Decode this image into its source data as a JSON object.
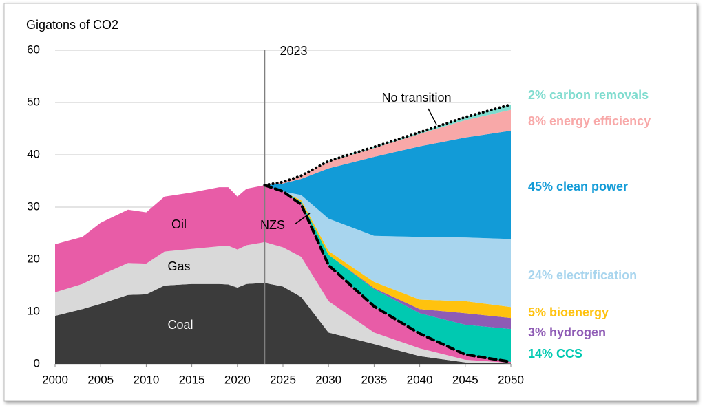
{
  "chart_data": {
    "type": "stacked-area",
    "y_axis_label": "Gigatons of CO2",
    "x": [
      2000,
      2003,
      2005,
      2008,
      2010,
      2012,
      2015,
      2018,
      2019,
      2020,
      2021,
      2023,
      2025,
      2027,
      2030,
      2035,
      2040,
      2045,
      2050
    ],
    "xlim": [
      2000,
      2050
    ],
    "xticks": [
      2000,
      2005,
      2010,
      2015,
      2020,
      2025,
      2030,
      2035,
      2040,
      2045,
      2050
    ],
    "ylim": [
      0,
      60
    ],
    "yticks": [
      0,
      10,
      20,
      30,
      40,
      50,
      60
    ],
    "grid": true,
    "vline": 2023,
    "series": [
      {
        "name": "Coal",
        "color": "#3b3b3b",
        "values": [
          9.2,
          10.5,
          11.5,
          13.2,
          13.3,
          15.0,
          15.3,
          15.3,
          15.2,
          14.6,
          15.3,
          15.5,
          14.8,
          12.8,
          6.0,
          3.8,
          1.5,
          0.3,
          0.1
        ]
      },
      {
        "name": "Gas",
        "color": "#d9d9d9",
        "values": [
          4.5,
          4.8,
          5.5,
          6.1,
          5.9,
          6.5,
          6.7,
          7.2,
          7.4,
          7.3,
          7.4,
          7.8,
          7.5,
          7.7,
          6.0,
          2.2,
          1.5,
          0.5,
          0.1
        ]
      },
      {
        "name": "Oil",
        "color": "#e85ca7",
        "values": [
          9.2,
          9.0,
          10.0,
          10.2,
          9.8,
          10.5,
          10.8,
          11.3,
          11.2,
          10.1,
          10.8,
          10.9,
          10.7,
          10.0,
          6.9,
          5.0,
          2.8,
          1.0,
          0.2
        ]
      },
      {
        "name": "14% CCS",
        "color": "#00c9b1",
        "values": [
          null,
          null,
          null,
          null,
          null,
          null,
          null,
          null,
          null,
          null,
          null,
          0,
          0,
          0.5,
          2.0,
          3.3,
          3.9,
          5.7,
          6.3
        ]
      },
      {
        "name": "3% hydrogen",
        "color": "#8e5bb5",
        "values": [
          null,
          null,
          null,
          null,
          null,
          null,
          null,
          null,
          null,
          null,
          null,
          0,
          0,
          0,
          0,
          0.2,
          0.8,
          2.2,
          2.1
        ]
      },
      {
        "name": "5% bioenergy",
        "color": "#ffc20e",
        "values": [
          null,
          null,
          null,
          null,
          null,
          null,
          null,
          null,
          null,
          null,
          null,
          0,
          0,
          0.3,
          0.7,
          1.2,
          1.8,
          2.3,
          2.1
        ]
      },
      {
        "name": "24% electrification",
        "color": "#a8d5ee",
        "values": [
          null,
          null,
          null,
          null,
          null,
          null,
          null,
          null,
          null,
          null,
          null,
          0,
          0,
          1.0,
          6.2,
          8.8,
          12.0,
          12.2,
          13.0
        ]
      },
      {
        "name": "45% clean power",
        "color": "#129bd7",
        "values": [
          null,
          null,
          null,
          null,
          null,
          null,
          null,
          null,
          null,
          null,
          null,
          0,
          1.5,
          3.1,
          9.6,
          15.1,
          17.3,
          19.1,
          20.7
        ]
      },
      {
        "name": "8% energy efficiency",
        "color": "#f8a8a8",
        "values": [
          null,
          null,
          null,
          null,
          null,
          null,
          null,
          null,
          null,
          null,
          null,
          0,
          0.3,
          0.6,
          1.3,
          1.7,
          2.4,
          3.3,
          4.0
        ]
      },
      {
        "name": "2% carbon removals",
        "color": "#7fdccf",
        "values": [
          null,
          null,
          null,
          null,
          null,
          null,
          null,
          null,
          null,
          null,
          null,
          0,
          0,
          0,
          0.1,
          0.2,
          0.3,
          0.6,
          1.0
        ]
      }
    ],
    "lines": [
      {
        "name": "No transition",
        "dash": "dotted",
        "color": "#000000",
        "values": [
          null,
          null,
          null,
          null,
          null,
          null,
          null,
          null,
          null,
          null,
          null,
          34.2,
          34.8,
          36.0,
          38.8,
          41.5,
          44.3,
          47.2,
          49.6
        ]
      },
      {
        "name": "NZS",
        "dash": "dashed",
        "color": "#000000",
        "values": [
          null,
          null,
          null,
          null,
          null,
          null,
          null,
          null,
          null,
          null,
          null,
          34.2,
          33.0,
          30.5,
          18.9,
          11.0,
          5.8,
          1.8,
          0.4
        ]
      }
    ]
  }
}
